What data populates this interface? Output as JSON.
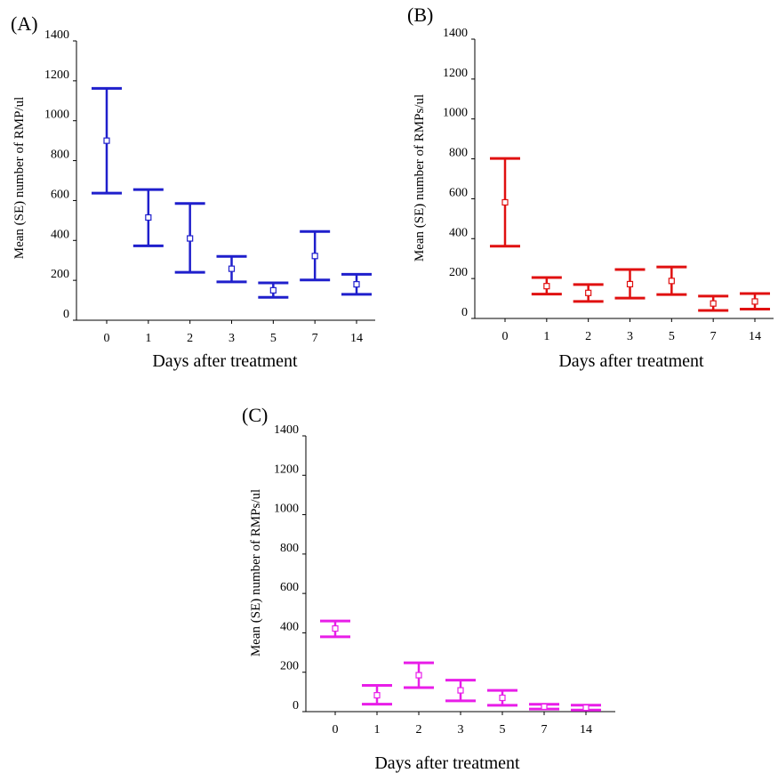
{
  "chart_data": [
    {
      "type": "errorbar",
      "panel_label": "(A)",
      "categories": [
        "0",
        "1",
        "2",
        "3",
        "5",
        "7",
        "14"
      ],
      "mean": [
        900,
        515,
        410,
        258,
        150,
        322,
        180
      ],
      "upper": [
        1162,
        655,
        585,
        320,
        187,
        445,
        230
      ],
      "lower": [
        637,
        373,
        240,
        192,
        115,
        202,
        130
      ],
      "ylim": [
        0,
        1400
      ],
      "yticks": [
        0,
        200,
        400,
        600,
        800,
        1000,
        1200,
        1400
      ],
      "xlabel": "Days after treatment",
      "ylabel": "Mean (SE) number of RMP/ul",
      "color": "#1f1fcc",
      "grid": false
    },
    {
      "type": "errorbar",
      "panel_label": "(B)",
      "categories": [
        "0",
        "1",
        "2",
        "3",
        "5",
        "7",
        "14"
      ],
      "mean": [
        582,
        162,
        128,
        172,
        188,
        75,
        85
      ],
      "upper": [
        802,
        205,
        170,
        245,
        258,
        112,
        125
      ],
      "lower": [
        362,
        122,
        85,
        102,
        120,
        40,
        47
      ],
      "ylim": [
        0,
        1400
      ],
      "yticks": [
        0,
        200,
        400,
        600,
        800,
        1000,
        1200,
        1400
      ],
      "xlabel": "Days after treatment",
      "ylabel": "Mean (SE) number of RMPs/ul",
      "color": "#e01010",
      "grid": false
    },
    {
      "type": "errorbar",
      "panel_label": "(C)",
      "categories": [
        "0",
        "1",
        "2",
        "3",
        "5",
        "7",
        "14"
      ],
      "mean": [
        422,
        83,
        185,
        108,
        70,
        25,
        20
      ],
      "upper": [
        460,
        133,
        248,
        160,
        108,
        37,
        33
      ],
      "lower": [
        380,
        38,
        122,
        55,
        32,
        13,
        8
      ],
      "ylim": [
        0,
        1400
      ],
      "yticks": [
        0,
        200,
        400,
        600,
        800,
        1000,
        1200,
        1400
      ],
      "xlabel": "Days after treatment",
      "ylabel": "Mean (SE) number of RMPs/ul",
      "color": "#e81ee8",
      "grid": false
    }
  ]
}
